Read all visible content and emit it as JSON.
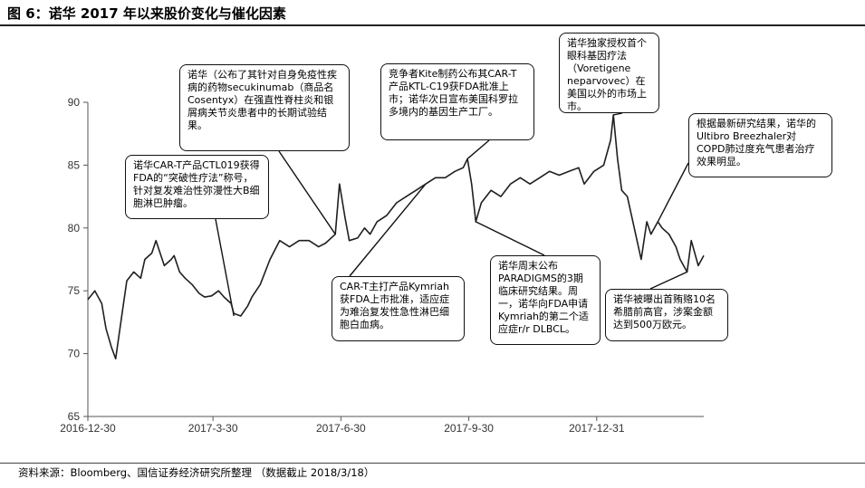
{
  "header": {
    "title": "图 6：诺华 2017 年以来股价变化与催化因素"
  },
  "footer": {
    "source": "资料来源：Bloomberg、国信证券经济研究所整理  （数据截止 2018/3/18）"
  },
  "chart_data": {
    "type": "line",
    "title": "",
    "xlabel": "",
    "ylabel": "",
    "ylim": [
      65,
      90
    ],
    "yticks": [
      65,
      70,
      75,
      80,
      85,
      90
    ],
    "xticks": [
      "2016-12-30",
      "2017-3-30",
      "2017-6-30",
      "2017-9-30",
      "2017-12-31"
    ],
    "x_range": [
      "2016-12-30",
      "2018-3-18"
    ],
    "grid": false,
    "line_color": "#1f1f1f",
    "series": [
      {
        "x": [
          "2016-12-30",
          "2017-01-04",
          "2017-01-09",
          "2017-01-12",
          "2017-01-16",
          "2017-01-19",
          "2017-01-24",
          "2017-01-27",
          "2017-02-01",
          "2017-02-06",
          "2017-02-09",
          "2017-02-14",
          "2017-02-17",
          "2017-02-23",
          "2017-02-28",
          "2017-03-02",
          "2017-03-06",
          "2017-03-10",
          "2017-03-15",
          "2017-03-20",
          "2017-03-24",
          "2017-03-29",
          "2017-04-03",
          "2017-04-07",
          "2017-04-12",
          "2017-04-14",
          "2017-04-19",
          "2017-04-24",
          "2017-04-27",
          "2017-05-03",
          "2017-05-10",
          "2017-05-17",
          "2017-05-24",
          "2017-05-31",
          "2017-06-07",
          "2017-06-14",
          "2017-06-19",
          "2017-06-26",
          "2017-06-29",
          "2017-07-03",
          "2017-07-06",
          "2017-07-12",
          "2017-07-17",
          "2017-07-21",
          "2017-07-26",
          "2017-08-02",
          "2017-08-09",
          "2017-08-16",
          "2017-08-23",
          "2017-08-30",
          "2017-09-06",
          "2017-09-13",
          "2017-09-20",
          "2017-09-26",
          "2017-09-29",
          "2017-10-02",
          "2017-10-05",
          "2017-10-09",
          "2017-10-16",
          "2017-10-23",
          "2017-10-30",
          "2017-11-06",
          "2017-11-13",
          "2017-11-20",
          "2017-11-27",
          "2017-12-04",
          "2017-12-11",
          "2017-12-18",
          "2017-12-22",
          "2017-12-29",
          "2018-01-05",
          "2018-01-10",
          "2018-01-12",
          "2018-01-15",
          "2018-01-18",
          "2018-01-22",
          "2018-01-25",
          "2018-01-29",
          "2018-02-01",
          "2018-02-05",
          "2018-02-08",
          "2018-02-13",
          "2018-02-16",
          "2018-02-21",
          "2018-02-26",
          "2018-03-01",
          "2018-03-06",
          "2018-03-09",
          "2018-03-14",
          "2018-03-18"
        ],
        "values": [
          74.3,
          75.0,
          74.0,
          72.0,
          70.5,
          69.6,
          73.5,
          75.8,
          76.5,
          76.0,
          77.5,
          78.0,
          79.0,
          77.0,
          77.5,
          77.8,
          76.5,
          76.0,
          75.5,
          74.8,
          74.5,
          74.6,
          75.0,
          74.5,
          74.0,
          73.2,
          73.0,
          73.8,
          74.5,
          75.5,
          77.5,
          79.0,
          78.5,
          79.0,
          79.0,
          78.5,
          78.8,
          79.5,
          83.5,
          80.8,
          79.0,
          79.2,
          80.0,
          79.5,
          80.5,
          81.0,
          82.0,
          82.5,
          83.0,
          83.5,
          84.0,
          84.0,
          84.5,
          84.8,
          85.5,
          83.5,
          80.5,
          82.0,
          83.0,
          82.5,
          83.5,
          84.0,
          83.5,
          84.0,
          84.5,
          84.2,
          84.5,
          84.8,
          83.5,
          84.5,
          85.0,
          87.0,
          89.0,
          85.5,
          83.0,
          82.5,
          81.0,
          79.0,
          77.5,
          80.5,
          79.5,
          80.5,
          80.0,
          79.5,
          78.5,
          77.5,
          76.5,
          79.0,
          77.0,
          77.8
        ]
      }
    ],
    "annotations": [
      {
        "text": "诺华CAR-T产品CTL019获得FDA的“突破性疗法”称号，针对复发难治性弥漫性大B细胞淋巴肿瘤。",
        "x": "2017-04-14",
        "y": 73.0
      },
      {
        "text": "诺华（公布了其针对自身免疫性疾病的药物secukinumab（商品名Cosentyx）在强直性脊柱炎和银屑病关节炎患者中的长期试验结果。",
        "x": "2017-06-26",
        "y": 79.5
      },
      {
        "text": "CAR-T主打产品Kymriah获FDA上市批准，适应症为难治复发性急性淋巴细胞白血病。",
        "x": "2017-08-30",
        "y": 83.5
      },
      {
        "text": "竞争者Kite制药公布其CAR-T产品KTL-C19获FDA批准上市；诺华次日宣布美国科罗拉多境内的基因生产工厂。",
        "x": "2017-09-29",
        "y": 85.5
      },
      {
        "text": "诺华周末公布PARADIGMS的3期临床研究结果。周一，诺华向FDA申请Kymriah的第二个适应症r/r DLBCL。",
        "x": "2017-10-05",
        "y": 80.5
      },
      {
        "text": "诺华独家授权首个眼科基因疗法（Voretigene neparvovec）在美国以外的市场上市。",
        "x": "2018-01-12",
        "y": 89.0
      },
      {
        "text": "根据最新研究结果，诺华的Ultibro Breezhaler对COPD肺过度充气患者治疗效果明显。",
        "x": "2018-02-13",
        "y": 80.5
      },
      {
        "text": "诺华被曝出首贿赂10名希腊前高官，涉案金额达到500万欧元。",
        "x": "2018-03-06",
        "y": 76.5
      }
    ]
  }
}
